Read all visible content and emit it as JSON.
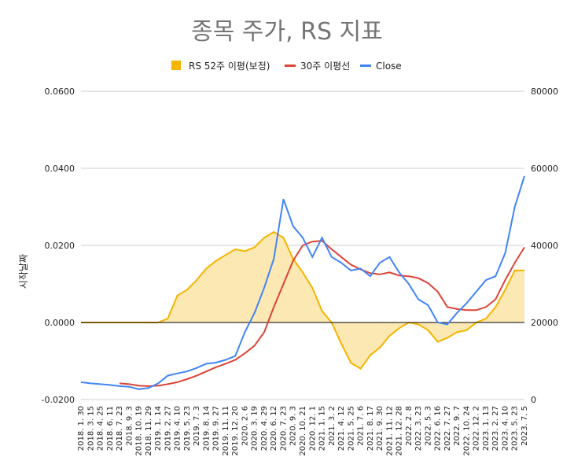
{
  "chart_data": {
    "type": "line",
    "title": "종목 주가, RS 지표",
    "ylabel": "시작날짜",
    "xlabel": "",
    "legend_position": "top",
    "grid": true,
    "y_left": {
      "ticks": [
        "0.0600",
        "0.0400",
        "0.0200",
        "0.0000",
        "-0.0200"
      ],
      "range": [
        -0.02,
        0.06
      ]
    },
    "y_right": {
      "ticks": [
        "80000",
        "60000",
        "40000",
        "20000",
        "0"
      ],
      "range": [
        0,
        80000
      ]
    },
    "x_tick_labels": [
      "2018. 1. 30",
      "2018. 3. 15",
      "2018. 4. 25",
      "2018. 6. 11",
      "2018. 7. 23",
      "2018. 9. 3",
      "2018. 10. 19",
      "2018. 11. 29",
      "2019. 1. 14",
      "2019. 2. 27",
      "2019. 4. 10",
      "2019. 5. 23",
      "2019. 7. 3",
      "2019. 8. 14",
      "2019. 9. 27",
      "2019. 11. 11",
      "2019. 12. 20",
      "2020. 2. 6",
      "2020. 3. 19",
      "2020. 4. 29",
      "2020. 6. 12",
      "2020. 7. 23",
      "2020. 9. 3",
      "2020. 10. 21",
      "2020. 12. 1",
      "2021. 1. 15",
      "2021. 3. 2",
      "2021. 4. 12",
      "2021. 5. 25",
      "2021. 7. 6",
      "2021. 8. 17",
      "2021. 9. 30",
      "2021. 11. 12",
      "2021. 12. 28",
      "2022. 2. 8",
      "2022. 3. 23",
      "2022. 5. 3",
      "2022. 6. 16",
      "2022. 7. 27",
      "2022. 9. 7",
      "2022. 10. 24",
      "2022. 12. 2",
      "2023. 1. 13",
      "2023. 2. 27",
      "2023. 4. 10",
      "2023. 5. 23",
      "2023. 7. 5"
    ],
    "series": [
      {
        "name": "RS 52주 이평(보정)",
        "axis": "left",
        "color": "#f4b400",
        "fill": "#fce8b2",
        "values": [
          0,
          0,
          0,
          0,
          0,
          0,
          0,
          0,
          0,
          0.001,
          0.007,
          0.0085,
          0.011,
          0.014,
          0.016,
          0.0175,
          0.019,
          0.0185,
          0.0195,
          0.022,
          0.0235,
          0.022,
          0.0165,
          0.013,
          0.009,
          0.003,
          0.0,
          -0.0055,
          -0.0105,
          -0.012,
          -0.0085,
          -0.0065,
          -0.0035,
          -0.0015,
          0.0,
          -0.0005,
          -0.002,
          -0.005,
          -0.004,
          -0.0025,
          -0.002,
          0.0,
          0.001,
          0.004,
          0.0085,
          0.0135,
          0.0135
        ]
      },
      {
        "name": "30주 이평선",
        "axis": "right",
        "color": "#db4437",
        "values": [
          null,
          null,
          null,
          null,
          4200,
          4000,
          3600,
          3500,
          3600,
          4000,
          4500,
          5300,
          6200,
          7300,
          8400,
          9300,
          10300,
          12000,
          14000,
          17500,
          24000,
          30000,
          36000,
          40000,
          41000,
          41200,
          39000,
          37000,
          35000,
          33800,
          32800,
          32500,
          33000,
          32200,
          32000,
          31500,
          30200,
          28000,
          24000,
          23500,
          23200,
          23200,
          24000,
          26000,
          31000,
          35500,
          39500
        ]
      },
      {
        "name": "Close",
        "axis": "right",
        "color": "#4285f4",
        "values": [
          4500,
          4200,
          4000,
          3800,
          3500,
          3300,
          2700,
          3000,
          4200,
          6200,
          6800,
          7300,
          8200,
          9300,
          9600,
          10300,
          11300,
          17500,
          22500,
          29000,
          36500,
          52000,
          45000,
          42000,
          37000,
          42000,
          37000,
          35500,
          33500,
          34000,
          32000,
          35500,
          37000,
          33000,
          30000,
          26000,
          24500,
          20000,
          19500,
          22500,
          25000,
          28000,
          31000,
          32000,
          38000,
          50000,
          58000
        ]
      }
    ]
  }
}
